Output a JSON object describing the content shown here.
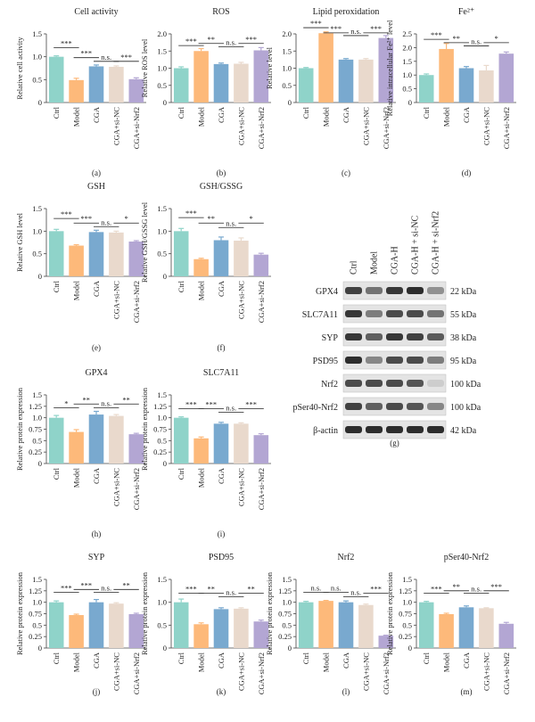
{
  "colors": [
    "#8fd3c9",
    "#fdb97a",
    "#79a9cf",
    "#e9d9cc",
    "#b3a6d3"
  ],
  "categories": [
    "Ctrl",
    "Model",
    "CGA",
    "CGA+si-NC",
    "CGA+si-Nrf2"
  ],
  "chart_data": [
    {
      "panel": "(a)",
      "type": "bar",
      "title": "Cell activity",
      "ylabel": "Relative cell activity",
      "ylim": [
        0,
        1.5
      ],
      "ticks": [
        0,
        0.5,
        1.0,
        1.5
      ],
      "categories": [
        "Ctrl",
        "Model",
        "CGA",
        "CGA+si-NC",
        "CGA+si-Nrf2"
      ],
      "values": [
        1.0,
        0.49,
        0.79,
        0.78,
        0.51
      ],
      "errors": [
        0.02,
        0.04,
        0.03,
        0.02,
        0.03
      ],
      "sig": [
        {
          "from": 0,
          "to": 1,
          "label": "***",
          "y": 1.2
        },
        {
          "from": 1,
          "to": 2,
          "label": "***",
          "y": 0.98
        },
        {
          "from": 2,
          "to": 3,
          "label": "n.s.",
          "y": 0.9
        },
        {
          "from": 3,
          "to": 4,
          "label": "***",
          "y": 0.9
        }
      ]
    },
    {
      "panel": "(b)",
      "type": "bar",
      "title": "ROS",
      "ylabel": "Relative ROS level",
      "ylim": [
        0,
        2.0
      ],
      "ticks": [
        0,
        0.5,
        1.0,
        1.5,
        2.0
      ],
      "categories": [
        "Ctrl",
        "Model",
        "CGA",
        "CGA+si-NC",
        "CGA+si-Nrf2"
      ],
      "values": [
        1.0,
        1.5,
        1.12,
        1.13,
        1.52
      ],
      "errors": [
        0.04,
        0.07,
        0.03,
        0.04,
        0.08
      ],
      "sig": [
        {
          "from": 0,
          "to": 1,
          "label": "***",
          "y": 1.66
        },
        {
          "from": 1,
          "to": 2,
          "label": "**",
          "y": 1.72
        },
        {
          "from": 2,
          "to": 3,
          "label": "n.s.",
          "y": 1.62
        },
        {
          "from": 3,
          "to": 4,
          "label": "***",
          "y": 1.72
        }
      ]
    },
    {
      "panel": "(c)",
      "type": "bar",
      "title": "Lipid peroxidation",
      "ylabel": "Relative level",
      "ylim": [
        0,
        2.0
      ],
      "ticks": [
        0,
        0.5,
        1.0,
        1.5,
        2.0
      ],
      "categories": [
        "Ctrl",
        "Model",
        "CGA",
        "CGA+si-NC",
        "CGA+si-Nrf2"
      ],
      "values": [
        1.0,
        2.02,
        1.25,
        1.25,
        1.88
      ],
      "errors": [
        0.02,
        0.04,
        0.03,
        0.03,
        0.07
      ],
      "sig": [
        {
          "from": 0,
          "to": 1,
          "label": "***",
          "y": 2.18
        },
        {
          "from": 1,
          "to": 2,
          "label": "***",
          "y": 2.03
        },
        {
          "from": 2,
          "to": 3,
          "label": "n.s.",
          "y": 1.95
        },
        {
          "from": 3,
          "to": 4,
          "label": "***",
          "y": 2.03
        }
      ]
    },
    {
      "panel": "(d)",
      "type": "bar",
      "title": "Fe²⁺",
      "ylabel": "Relative intracellular Fe²⁺ level",
      "ylim": [
        0,
        2.5
      ],
      "ticks": [
        0,
        0.5,
        1.0,
        1.5,
        2.0,
        2.5
      ],
      "categories": [
        "Ctrl",
        "Model",
        "CGA",
        "CGA+si-NC",
        "CGA+si-Nrf2"
      ],
      "values": [
        1.0,
        1.95,
        1.25,
        1.17,
        1.78
      ],
      "errors": [
        0.04,
        0.2,
        0.06,
        0.18,
        0.06
      ],
      "sig": [
        {
          "from": 0,
          "to": 1,
          "label": "***",
          "y": 2.3
        },
        {
          "from": 1,
          "to": 2,
          "label": "**",
          "y": 2.18
        },
        {
          "from": 2,
          "to": 3,
          "label": "n.s.",
          "y": 2.06
        },
        {
          "from": 3,
          "to": 4,
          "label": "*",
          "y": 2.18
        }
      ]
    },
    {
      "panel": "(e)",
      "type": "bar",
      "title": "GSH",
      "ylabel": "Relative GSH level",
      "ylim": [
        0,
        1.5
      ],
      "ticks": [
        0,
        0.5,
        1.0,
        1.5
      ],
      "categories": [
        "Ctrl",
        "Model",
        "CGA",
        "CGA+si-NC",
        "CGA+si-Nrf2"
      ],
      "values": [
        1.0,
        0.68,
        0.98,
        0.97,
        0.77
      ],
      "errors": [
        0.04,
        0.02,
        0.04,
        0.03,
        0.02
      ],
      "sig": [
        {
          "from": 0,
          "to": 1,
          "label": "***",
          "y": 1.28
        },
        {
          "from": 1,
          "to": 2,
          "label": "***",
          "y": 1.18
        },
        {
          "from": 2,
          "to": 3,
          "label": "n.s.",
          "y": 1.1
        },
        {
          "from": 3,
          "to": 4,
          "label": "*",
          "y": 1.18
        }
      ]
    },
    {
      "panel": "(f)",
      "type": "bar",
      "title": "GSH/GSSG",
      "ylabel": "Relative GSH/GSSG level",
      "ylim": [
        0,
        1.5
      ],
      "ticks": [
        0,
        0.5,
        1.0,
        1.5
      ],
      "categories": [
        "Ctrl",
        "Model",
        "CGA",
        "CGA+si-NC",
        "CGA+si-Nrf2"
      ],
      "values": [
        1.0,
        0.38,
        0.8,
        0.79,
        0.48
      ],
      "errors": [
        0.06,
        0.02,
        0.07,
        0.06,
        0.03
      ],
      "sig": [
        {
          "from": 0,
          "to": 1,
          "label": "***",
          "y": 1.3
        },
        {
          "from": 1,
          "to": 2,
          "label": "**",
          "y": 1.18
        },
        {
          "from": 2,
          "to": 3,
          "label": "n.s.",
          "y": 1.08
        },
        {
          "from": 3,
          "to": 4,
          "label": "*",
          "y": 1.18
        }
      ]
    },
    {
      "panel": "(h)",
      "type": "bar",
      "title": "GPX4",
      "ylabel": "Relative protein expression",
      "ylim": [
        0,
        1.5
      ],
      "ticks": [
        0,
        0.25,
        0.5,
        0.75,
        1.0,
        1.25,
        1.5
      ],
      "categories": [
        "Ctrl",
        "Model",
        "CGA",
        "CGA+si-NC",
        "CGA+si-Nrf2"
      ],
      "values": [
        1.0,
        0.69,
        1.07,
        1.04,
        0.64
      ],
      "errors": [
        0.05,
        0.05,
        0.07,
        0.03,
        0.02
      ],
      "sig": [
        {
          "from": 0,
          "to": 1,
          "label": "*",
          "y": 1.22
        },
        {
          "from": 1,
          "to": 2,
          "label": "**",
          "y": 1.3
        },
        {
          "from": 2,
          "to": 3,
          "label": "n.s.",
          "y": 1.22
        },
        {
          "from": 3,
          "to": 4,
          "label": "**",
          "y": 1.3
        }
      ]
    },
    {
      "panel": "(i)",
      "type": "bar",
      "title": "SLC7A11",
      "ylabel": "Relative protein expression",
      "ylim": [
        0,
        1.5
      ],
      "ticks": [
        0,
        0.25,
        0.5,
        0.75,
        1.0,
        1.25,
        1.5
      ],
      "categories": [
        "Ctrl",
        "Model",
        "CGA",
        "CGA+si-NC",
        "CGA+si-Nrf2"
      ],
      "values": [
        1.0,
        0.55,
        0.87,
        0.87,
        0.62
      ],
      "errors": [
        0.02,
        0.03,
        0.03,
        0.02,
        0.03
      ],
      "sig": [
        {
          "from": 0,
          "to": 1,
          "label": "***",
          "y": 1.2
        },
        {
          "from": 1,
          "to": 2,
          "label": "***",
          "y": 1.2
        },
        {
          "from": 2,
          "to": 3,
          "label": "n.s.",
          "y": 1.12
        },
        {
          "from": 3,
          "to": 4,
          "label": "***",
          "y": 1.2
        }
      ]
    },
    {
      "panel": "(j)",
      "type": "bar",
      "title": "SYP",
      "ylabel": "Relative protein expression",
      "ylim": [
        0,
        1.5
      ],
      "ticks": [
        0,
        0.25,
        0.5,
        0.75,
        1.0,
        1.25,
        1.5
      ],
      "categories": [
        "Ctrl",
        "Model",
        "CGA",
        "CGA+si-NC",
        "CGA+si-Nrf2"
      ],
      "values": [
        1.0,
        0.72,
        1.0,
        0.97,
        0.74
      ],
      "errors": [
        0.03,
        0.02,
        0.06,
        0.02,
        0.02
      ],
      "sig": [
        {
          "from": 0,
          "to": 1,
          "label": "***",
          "y": 1.22
        },
        {
          "from": 1,
          "to": 2,
          "label": "***",
          "y": 1.28
        },
        {
          "from": 2,
          "to": 3,
          "label": "n.s.",
          "y": 1.22
        },
        {
          "from": 3,
          "to": 4,
          "label": "**",
          "y": 1.28
        }
      ]
    },
    {
      "panel": "(k)",
      "type": "bar",
      "title": "PSD95",
      "ylabel": "Relative protein expression",
      "ylim": [
        0,
        1.5
      ],
      "ticks": [
        0,
        0.5,
        1.0,
        1.5
      ],
      "categories": [
        "Ctrl",
        "Model",
        "CGA",
        "CGA+si-NC",
        "CGA+si-Nrf2"
      ],
      "values": [
        1.0,
        0.52,
        0.85,
        0.86,
        0.58
      ],
      "errors": [
        0.07,
        0.03,
        0.03,
        0.02,
        0.03
      ],
      "sig": [
        {
          "from": 0,
          "to": 1,
          "label": "***",
          "y": 1.2
        },
        {
          "from": 1,
          "to": 2,
          "label": "**",
          "y": 1.2
        },
        {
          "from": 2,
          "to": 3,
          "label": "n.s.",
          "y": 1.12
        },
        {
          "from": 3,
          "to": 4,
          "label": "**",
          "y": 1.2
        }
      ]
    },
    {
      "panel": "(l)",
      "type": "bar",
      "title": "Nrf2",
      "ylabel": "Relative protein expression",
      "ylim": [
        0,
        1.5
      ],
      "ticks": [
        0,
        0.25,
        0.5,
        0.75,
        1.0,
        1.25,
        1.5
      ],
      "categories": [
        "Ctrl",
        "Model",
        "CGA",
        "CGA+si-NC",
        "CGA+si-Nrf2"
      ],
      "values": [
        1.0,
        1.03,
        1.0,
        0.94,
        0.27
      ],
      "errors": [
        0.02,
        0.01,
        0.03,
        0.02,
        0.01
      ],
      "sig": [
        {
          "from": 0,
          "to": 1,
          "label": "n.s.",
          "y": 1.22
        },
        {
          "from": 1,
          "to": 2,
          "label": "n.s.",
          "y": 1.22
        },
        {
          "from": 2,
          "to": 3,
          "label": "n.s.",
          "y": 1.12
        },
        {
          "from": 3,
          "to": 4,
          "label": "***",
          "y": 1.2
        }
      ]
    },
    {
      "panel": "(m)",
      "type": "bar",
      "title": "pSer40-Nrf2",
      "ylabel": "Relative protein expression",
      "ylim": [
        0,
        1.5
      ],
      "ticks": [
        0,
        0.25,
        0.5,
        0.75,
        1.0,
        1.25,
        1.5
      ],
      "categories": [
        "Ctrl",
        "Model",
        "CGA",
        "CGA+si-NC",
        "CGA+si-Nrf2"
      ],
      "values": [
        1.0,
        0.74,
        0.89,
        0.87,
        0.53
      ],
      "errors": [
        0.02,
        0.02,
        0.03,
        0.01,
        0.03
      ],
      "sig": [
        {
          "from": 0,
          "to": 1,
          "label": "***",
          "y": 1.2
        },
        {
          "from": 1,
          "to": 2,
          "label": "**",
          "y": 1.25
        },
        {
          "from": 2,
          "to": 3,
          "label": "n.s.",
          "y": 1.2
        },
        {
          "from": 3,
          "to": 4,
          "label": "***",
          "y": 1.25
        }
      ]
    }
  ],
  "western_blot": {
    "panel": "(g)",
    "lanes": [
      "Ctrl",
      "Model",
      "CGA-H",
      "CGA-H + si-NC",
      "CGA-H + si-Nrf2"
    ],
    "rows": [
      {
        "protein": "GPX4",
        "kda": "22 kDa",
        "intensity": [
          0.85,
          0.6,
          0.9,
          0.95,
          0.45
        ]
      },
      {
        "protein": "SLC7A11",
        "kda": "55 kDa",
        "intensity": [
          0.9,
          0.55,
          0.8,
          0.8,
          0.6
        ]
      },
      {
        "protein": "SYP",
        "kda": "38 kDa",
        "intensity": [
          0.9,
          0.7,
          0.9,
          0.85,
          0.72
        ]
      },
      {
        "protein": "PSD95",
        "kda": "95 kDa",
        "intensity": [
          0.95,
          0.5,
          0.8,
          0.8,
          0.55
        ]
      },
      {
        "protein": "Nrf2",
        "kda": "100 kDa",
        "intensity": [
          0.8,
          0.8,
          0.8,
          0.75,
          0.15
        ]
      },
      {
        "protein": "pSer40-Nrf2",
        "kda": "100 kDa",
        "intensity": [
          0.85,
          0.7,
          0.8,
          0.75,
          0.5
        ]
      },
      {
        "protein": "β-actin",
        "kda": "42 kDa",
        "intensity": [
          0.95,
          0.95,
          0.95,
          0.95,
          0.95
        ]
      }
    ]
  }
}
